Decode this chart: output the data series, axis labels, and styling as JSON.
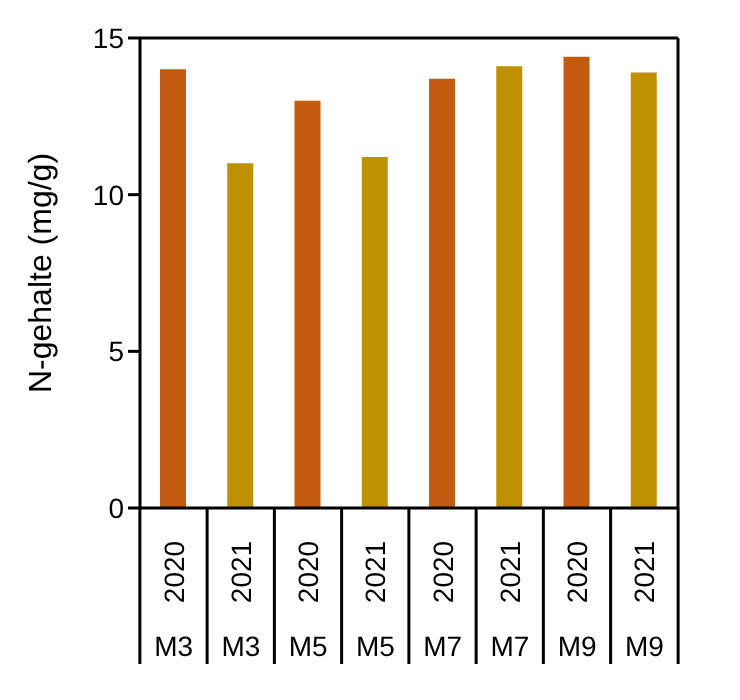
{
  "chart_data": {
    "type": "bar",
    "ylabel": "N-gehalte (mg/g)",
    "categories": [
      "2020 M3",
      "2021 M3",
      "2020 M5",
      "2021 M5",
      "2020 M7",
      "2021 M7",
      "2020 M9",
      "2021 M9"
    ],
    "values": [
      14.0,
      11.0,
      13.0,
      11.2,
      13.7,
      14.1,
      14.4,
      13.9
    ],
    "colors": [
      "#c55a11",
      "#bf9000",
      "#c55a11",
      "#bf9000",
      "#c55a11",
      "#bf9000",
      "#c55a11",
      "#bf9000"
    ],
    "ylim": [
      0,
      15
    ],
    "yticks": [
      0,
      5,
      10,
      15
    ],
    "grid": false
  }
}
